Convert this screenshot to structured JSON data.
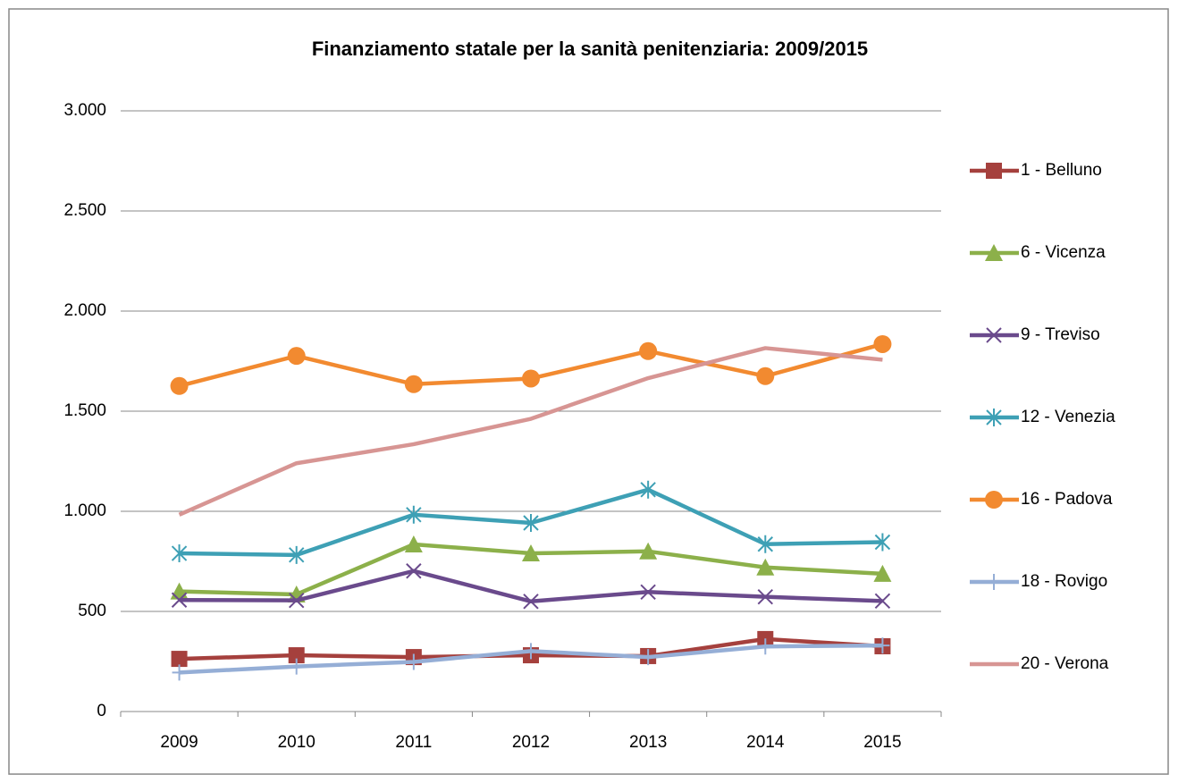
{
  "chart_data": {
    "type": "line",
    "title": "Finanziamento statale per la sanità penitenziaria: 2009/2015",
    "categories": [
      "2009",
      "2010",
      "2011",
      "2012",
      "2013",
      "2014",
      "2015"
    ],
    "ylim": [
      0,
      3000
    ],
    "yticks": [
      0,
      500,
      {
        "value": 1000,
        "label": "1.000"
      },
      {
        "value": 1500,
        "label": "1.500"
      },
      {
        "value": 2000,
        "label": "2.000"
      },
      {
        "value": 2500,
        "label": "2.500"
      },
      {
        "value": 3000,
        "label": "3.000"
      }
    ],
    "grid": true,
    "legend": "right",
    "series": [
      {
        "name": "1 - Belluno",
        "color": "#a5403d",
        "marker": "square",
        "values": [
          263,
          281,
          272,
          281,
          277,
          362,
          326
        ]
      },
      {
        "name": "6 - Vicenza",
        "color": "#8cb04a",
        "marker": "triangle",
        "values": [
          600,
          585,
          835,
          790,
          800,
          720,
          688
        ]
      },
      {
        "name": "9 - Treviso",
        "color": "#6a4a8c",
        "marker": "x",
        "values": [
          557,
          555,
          702,
          550,
          597,
          573,
          552
        ]
      },
      {
        "name": "12 - Venezia",
        "color": "#3ea0b5",
        "marker": "star",
        "values": [
          790,
          782,
          983,
          942,
          1108,
          836,
          846
        ]
      },
      {
        "name": "16 - Padova",
        "color": "#f28a30",
        "marker": "circle",
        "values": [
          1626,
          1776,
          1635,
          1663,
          1800,
          1675,
          1835
        ]
      },
      {
        "name": "18 - Rovigo",
        "color": "#95aed6",
        "marker": "plus",
        "values": [
          195,
          225,
          248,
          302,
          272,
          325,
          330
        ]
      },
      {
        "name": "20 - Verona",
        "color": "#d79593",
        "marker": "none",
        "values": [
          983,
          1240,
          1335,
          1462,
          1665,
          1815,
          1757
        ]
      }
    ]
  }
}
